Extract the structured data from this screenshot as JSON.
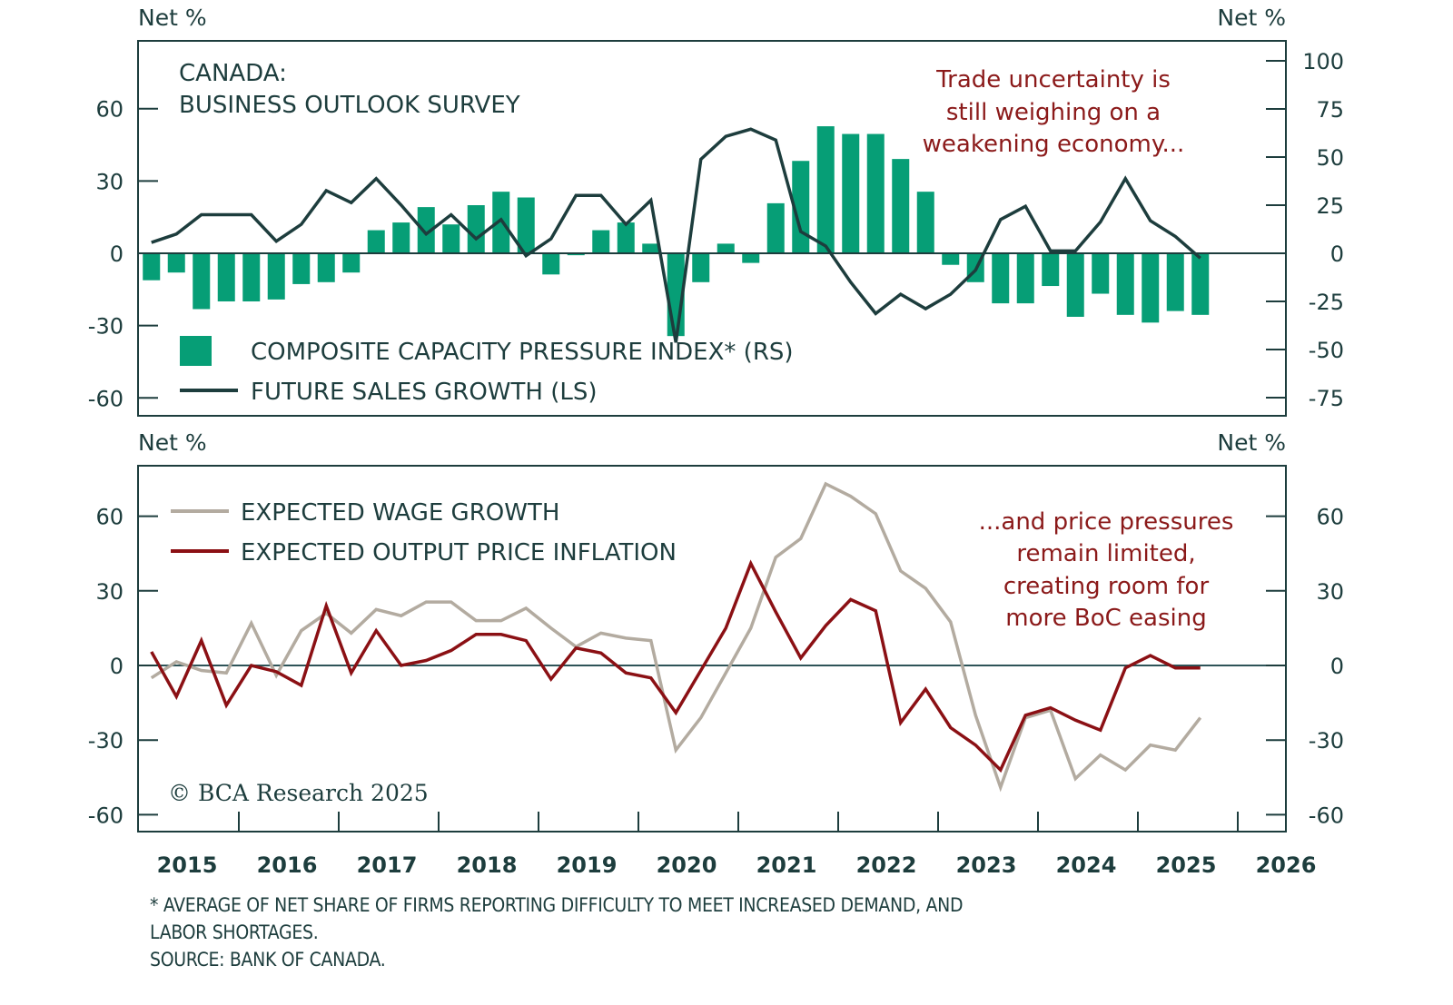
{
  "colors": {
    "frame": "#1d3d3d",
    "bars": "#069e76",
    "future_sales_line": "#1d3d3d",
    "wage_line": "#b3aba0",
    "price_line": "#8b1014",
    "annotation": "#8b1a1a"
  },
  "chart_data": [
    {
      "type": "bar+line",
      "panel": "top",
      "title": "CANADA:\nBUSINESS OUTLOOK SURVEY",
      "title_lines": [
        "CANADA:",
        "BUSINESS OUTLOOK SURVEY"
      ],
      "left_unit": "Net %",
      "right_unit": "Net %",
      "left_axis": {
        "ticks": [
          60,
          30,
          0,
          -30,
          -60
        ],
        "labels": [
          "60",
          "30",
          "0",
          "-30",
          "-60"
        ],
        "ylim": [
          -63,
          75
        ]
      },
      "right_axis": {
        "ticks": [
          100,
          75,
          50,
          25,
          0,
          -25,
          -50,
          -75
        ],
        "labels": [
          "100",
          "75",
          "50",
          "25",
          "0",
          "-25",
          "-50",
          "-75"
        ],
        "ylim": [
          -84,
          110
        ]
      },
      "annotation_lines": [
        "Trade uncertainty is",
        "still weighing on a",
        "weakening economy..."
      ],
      "legend": [
        {
          "name": "COMPOSITE CAPACITY PRESSURE INDEX* (RS)",
          "type": "bar"
        },
        {
          "name": "FUTURE SALES GROWTH (LS)",
          "type": "line"
        }
      ],
      "x_start": "2015Q1",
      "frequency": "quarterly",
      "series": [
        {
          "name": "COMPOSITE CAPACITY PRESSURE INDEX* (RS)",
          "axis": "right",
          "values": [
            -14,
            -10,
            -29,
            -25,
            -25,
            -24,
            -16,
            -15,
            -10,
            12,
            16,
            24,
            15,
            25,
            32,
            29,
            -11,
            -1,
            12,
            16,
            5,
            -43,
            -15,
            5,
            -5,
            26,
            48,
            66,
            62,
            62,
            49,
            32,
            -6,
            -15,
            -26,
            -26,
            -17,
            -33,
            -21,
            -32,
            -36,
            -30,
            -32
          ]
        },
        {
          "name": "FUTURE SALES GROWTH (LS)",
          "axis": "left",
          "values": [
            4.5,
            8,
            16,
            16,
            16,
            5,
            12,
            26,
            21,
            31,
            20,
            8,
            16,
            6,
            14,
            -1,
            6,
            24,
            24,
            12,
            22,
            -37,
            39,
            48.5,
            51.5,
            47,
            9,
            3,
            -12,
            -25,
            -17,
            -23,
            -17,
            -7,
            14,
            19.5,
            1,
            1,
            13,
            31,
            13.5,
            7,
            -2
          ]
        }
      ]
    },
    {
      "type": "line",
      "panel": "bottom",
      "left_unit": "Net %",
      "right_unit": "Net %",
      "left_axis": {
        "ticks": [
          60,
          30,
          0,
          -30,
          -60
        ],
        "labels": [
          "60",
          "30",
          "0",
          "-30",
          "-60"
        ],
        "ylim": [
          -66,
          80
        ]
      },
      "right_axis": {
        "ticks": [
          60,
          30,
          0,
          -30,
          -60
        ],
        "labels": [
          "60",
          "30",
          "0",
          "-30",
          "-60"
        ],
        "ylim": [
          -66,
          80
        ]
      },
      "annotation_lines": [
        "...and price pressures",
        "remain limited,",
        "creating room for",
        "more BoC easing"
      ],
      "credit": "© BCA Research 2025",
      "legend": [
        {
          "name": "EXPECTED WAGE GROWTH",
          "type": "line"
        },
        {
          "name": "EXPECTED OUTPUT PRICE INFLATION",
          "type": "line"
        }
      ],
      "x_start": "2015Q1",
      "frequency": "quarterly",
      "series": [
        {
          "name": "EXPECTED WAGE GROWTH",
          "values": [
            -5,
            1.5,
            -2,
            -3,
            17,
            -4,
            14,
            21,
            13,
            22.5,
            20,
            25.5,
            25.5,
            18,
            18,
            23,
            15,
            7.5,
            13,
            11,
            10,
            -34,
            -21,
            -3,
            15,
            43.5,
            51,
            73,
            68,
            61,
            38,
            31,
            17.5,
            -20,
            -49,
            -21,
            -18,
            -45.5,
            -36,
            -42,
            -32,
            -34,
            -21
          ]
        },
        {
          "name": "EXPECTED OUTPUT PRICE INFLATION",
          "values": [
            5.5,
            -12.5,
            10,
            -16,
            0,
            -2.5,
            -8,
            24,
            -3,
            14,
            0,
            2,
            6,
            12.5,
            12.5,
            10,
            -5.5,
            7,
            5,
            -3,
            -5,
            -19,
            -2,
            15,
            41,
            21.5,
            3,
            16,
            26.5,
            22,
            -23,
            -9.5,
            -25,
            -32,
            -42,
            -20,
            -17,
            -22,
            -26,
            -1,
            4,
            -1,
            -1
          ]
        }
      ],
      "x_tick_labels": [
        "2015",
        "2016",
        "2017",
        "2018",
        "2019",
        "2020",
        "2021",
        "2022",
        "2023",
        "2024",
        "2025",
        "2026"
      ],
      "xlim": [
        2015,
        2026
      ]
    }
  ],
  "footnotes": [
    "* AVERAGE OF NET SHARE OF FIRMS REPORTING DIFFICULTY TO MEET INCREASED DEMAND, AND",
    "LABOR SHORTAGES.",
    "SOURCE: BANK OF CANADA."
  ]
}
